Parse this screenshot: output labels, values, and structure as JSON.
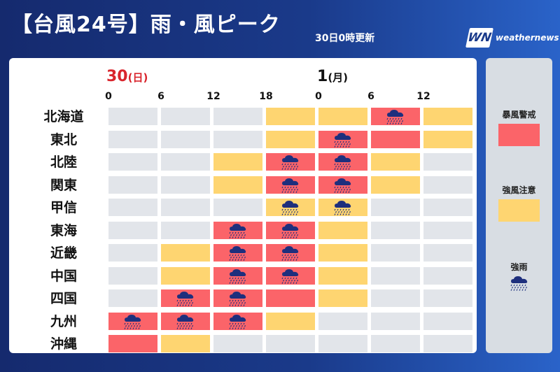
{
  "header": {
    "title": "【台風24号】雨・風ピーク",
    "updated": "30日0時更新",
    "logo_mark": "WN",
    "logo_text": "weathernews"
  },
  "colors": {
    "storm_warning": "#fb6469",
    "strong_wind_caution": "#fed571",
    "none": "#e2e5ea",
    "rain_icon": "#1e2f7d"
  },
  "legend": {
    "storm_warning": "暴風警戒",
    "strong_wind_caution": "強風注意",
    "heavy_rain": "強雨"
  },
  "chart_data": {
    "type": "table",
    "days": [
      {
        "num": "30",
        "weekday": "(日)"
      },
      {
        "num": "1",
        "weekday": "(月)"
      }
    ],
    "hour_ticks": [
      "0",
      "6",
      "12",
      "18",
      "0",
      "6",
      "12"
    ],
    "columns": [
      "30日0-6時",
      "30日6-12時",
      "30日12-18時",
      "30日18-24時",
      "1日0-6時",
      "1日6-12時",
      "1日12-18時"
    ],
    "levels": {
      "0": "none",
      "1": "強風注意",
      "2": "暴風警戒"
    },
    "regions": [
      {
        "name": "北海道",
        "levels": [
          0,
          0,
          0,
          1,
          1,
          2,
          1
        ],
        "rain": [
          0,
          0,
          0,
          0,
          0,
          1,
          0
        ]
      },
      {
        "name": "東北",
        "levels": [
          0,
          0,
          0,
          1,
          2,
          2,
          1
        ],
        "rain": [
          0,
          0,
          0,
          0,
          1,
          0,
          0
        ]
      },
      {
        "name": "北陸",
        "levels": [
          0,
          0,
          1,
          2,
          2,
          1,
          0
        ],
        "rain": [
          0,
          0,
          0,
          1,
          1,
          0,
          0
        ]
      },
      {
        "name": "関東",
        "levels": [
          0,
          0,
          1,
          2,
          2,
          1,
          0
        ],
        "rain": [
          0,
          0,
          0,
          1,
          1,
          0,
          0
        ]
      },
      {
        "name": "甲信",
        "levels": [
          0,
          0,
          0,
          1,
          1,
          0,
          0
        ],
        "rain": [
          0,
          0,
          0,
          1,
          1,
          0,
          0
        ]
      },
      {
        "name": "東海",
        "levels": [
          0,
          0,
          2,
          2,
          1,
          0,
          0
        ],
        "rain": [
          0,
          0,
          1,
          1,
          0,
          0,
          0
        ]
      },
      {
        "name": "近畿",
        "levels": [
          0,
          1,
          2,
          2,
          1,
          0,
          0
        ],
        "rain": [
          0,
          0,
          1,
          1,
          0,
          0,
          0
        ]
      },
      {
        "name": "中国",
        "levels": [
          0,
          1,
          2,
          2,
          1,
          0,
          0
        ],
        "rain": [
          0,
          0,
          1,
          1,
          0,
          0,
          0
        ]
      },
      {
        "name": "四国",
        "levels": [
          0,
          2,
          2,
          2,
          1,
          0,
          0
        ],
        "rain": [
          0,
          1,
          1,
          0,
          0,
          0,
          0
        ]
      },
      {
        "name": "九州",
        "levels": [
          2,
          2,
          2,
          1,
          0,
          0,
          0
        ],
        "rain": [
          1,
          1,
          1,
          0,
          0,
          0,
          0
        ]
      },
      {
        "name": "沖縄",
        "levels": [
          2,
          1,
          0,
          0,
          0,
          0,
          0
        ],
        "rain": [
          0,
          0,
          0,
          0,
          0,
          0,
          0
        ]
      }
    ]
  }
}
